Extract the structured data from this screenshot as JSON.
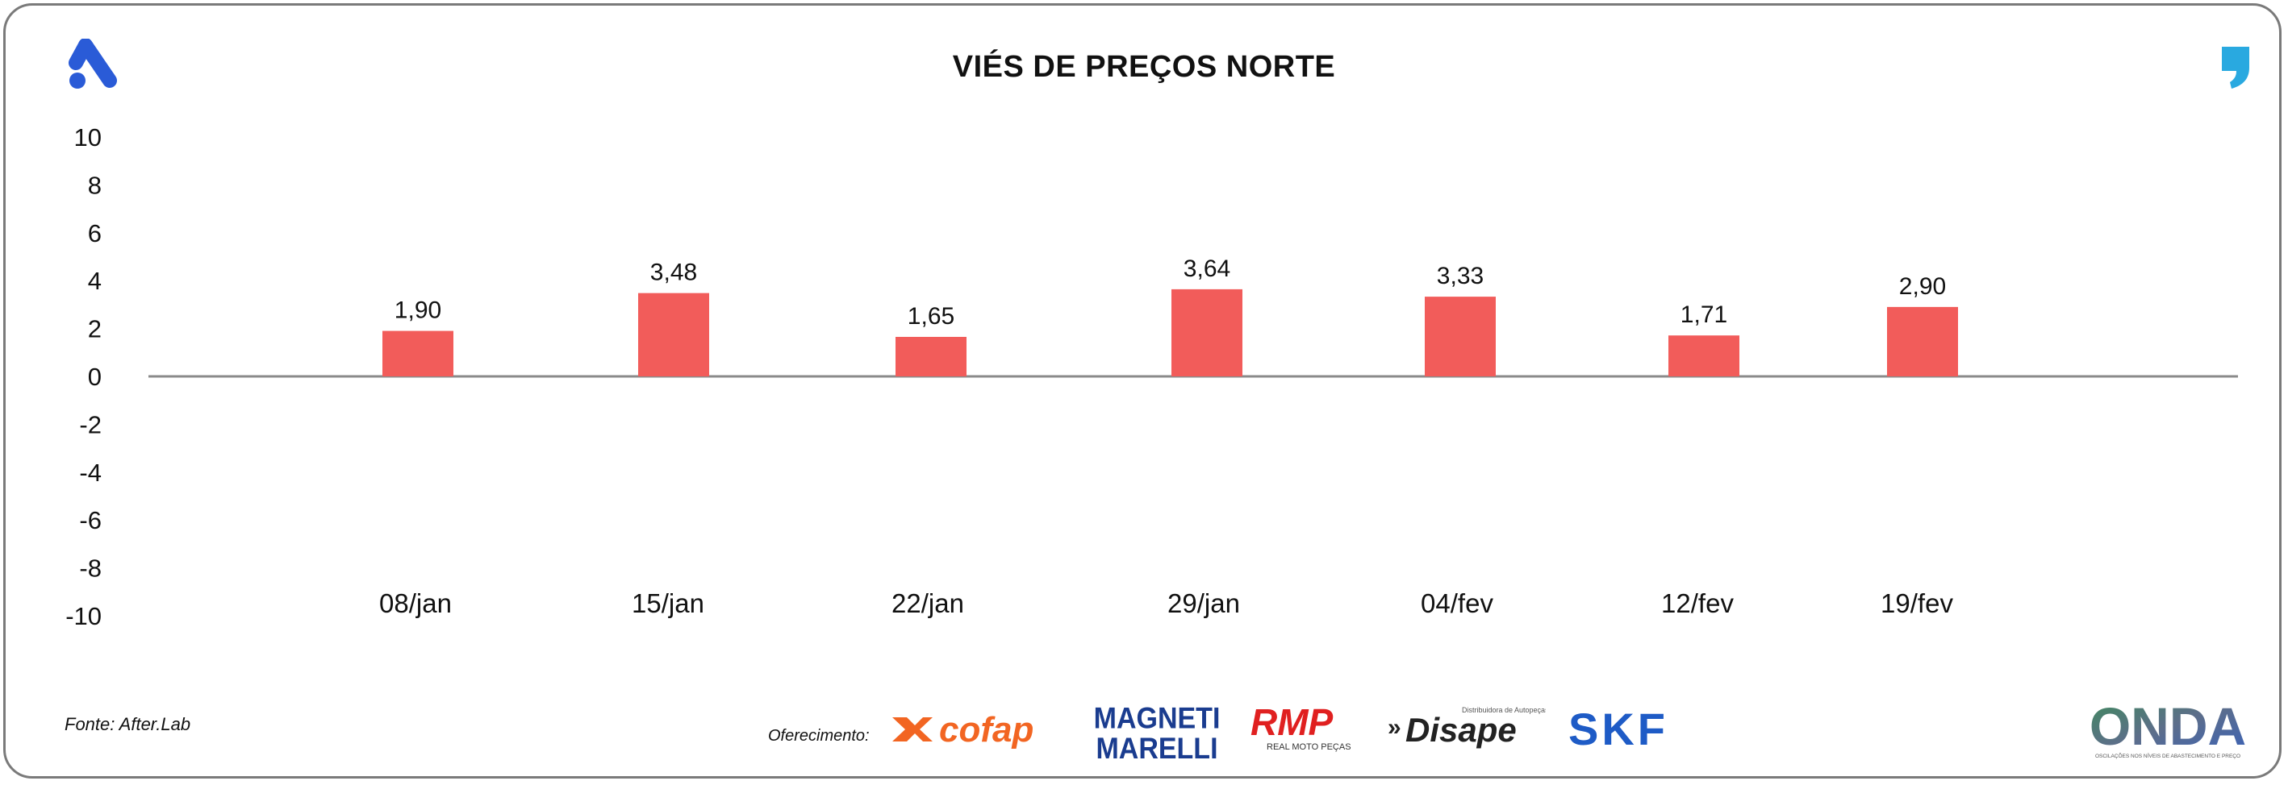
{
  "header": {
    "title": "VIÉS DE PREÇOS NORTE"
  },
  "chart_data": {
    "type": "bar",
    "title": "VIÉS DE PREÇOS NORTE",
    "categories": [
      "08/jan",
      "15/jan",
      "22/jan",
      "29/jan",
      "04/fev",
      "12/fev",
      "19/fev"
    ],
    "values": [
      1.9,
      3.48,
      1.65,
      3.64,
      3.33,
      1.71,
      2.9
    ],
    "value_labels": [
      "1,90",
      "3,48",
      "1,65",
      "3,64",
      "3,33",
      "1,71",
      "2,90"
    ],
    "ylim": [
      -10,
      10
    ],
    "yticks": [
      "10",
      "8",
      "6",
      "4",
      "2",
      "0",
      "-2",
      "-4",
      "-6",
      "-8",
      "-10"
    ],
    "xlabel": "",
    "ylabel": "",
    "grid": false,
    "bar_color": "#f25c5a"
  },
  "footer": {
    "source": "Fonte: After.Lab",
    "sponsor_label": "Oferecimento:",
    "sponsors": [
      "cofap",
      "MAGNETI MARELLI",
      "RMP",
      "REAL MOTO PEÇAS",
      "Disape",
      "Distribuidora de Autopeças",
      "SKF"
    ],
    "brand": "ONDA",
    "brand_tagline": "OSCILAÇÕES NOS NÍVEIS DE ABASTECIMENTO E PREÇO"
  },
  "colors": {
    "accent_blue": "#2a5bd7",
    "quote_blue": "#29a9e0",
    "bar": "#f25c5a",
    "axis": "#8a8a8a"
  }
}
